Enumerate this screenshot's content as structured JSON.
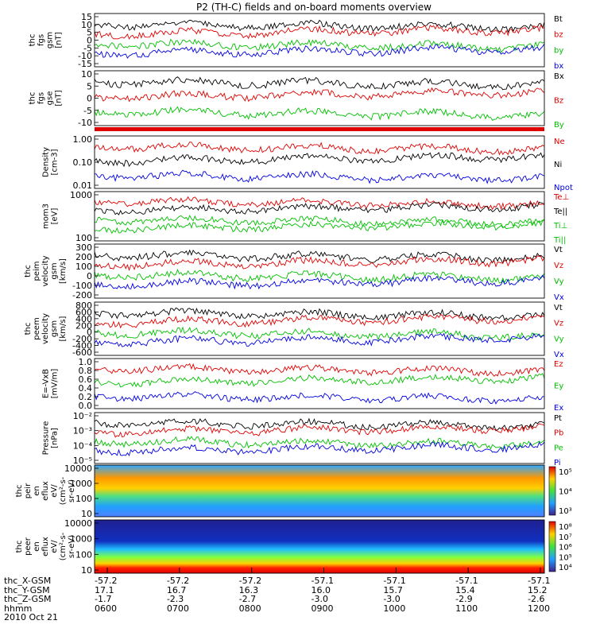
{
  "chart_data": {
    "title": "P2 (TH-C) fields and on-board moments overview",
    "type": "line",
    "x": {
      "tick_labels": [
        "0600",
        "0700",
        "0800",
        "0900",
        "1000",
        "1100",
        "1200"
      ],
      "ephemeris": [
        {
          "label": "thc_X-GSM",
          "values": [
            "-57.2",
            "-57.2",
            "-57.2",
            "-57.1",
            "-57.1",
            "-57.1",
            "-57.1"
          ]
        },
        {
          "label": "thc_Y-GSM",
          "values": [
            "17.1",
            "16.7",
            "16.3",
            "16.0",
            "15.7",
            "15.4",
            "15.2"
          ]
        },
        {
          "label": "thc_Z-GSM",
          "values": [
            "-1.7",
            "-2.3",
            "-2.7",
            "-3.0",
            "-3.0",
            "-2.9",
            "-2.6"
          ]
        },
        {
          "label": "hhmm",
          "values": [
            "0600",
            "0700",
            "0800",
            "0900",
            "1000",
            "1100",
            "1200"
          ]
        }
      ],
      "date": "2010 Oct 21"
    },
    "panels": [
      {
        "id": "fgs-gsm",
        "ylabel": [
          "thc",
          "fgs",
          "gsm",
          "[nT]"
        ],
        "yticks": [
          "15",
          "10",
          "5",
          "0",
          "-5",
          "-10",
          "-15"
        ],
        "legend": [
          {
            "name": "Bt",
            "color": "#000000"
          },
          {
            "name": "bz",
            "color": "#e00000"
          },
          {
            "name": "by",
            "color": "#00c000"
          },
          {
            "name": "bx",
            "color": "#0000e0"
          }
        ]
      },
      {
        "id": "fgs-gse",
        "ylabel": [
          "thc",
          "fgs",
          "gse",
          "[nT]"
        ],
        "yticks": [
          "10",
          "5",
          "0",
          "-5",
          "-10"
        ],
        "legend": [
          {
            "name": "Bx",
            "color": "#000000"
          },
          {
            "name": "Bz",
            "color": "#e00000"
          },
          {
            "name": "By",
            "color": "#00c000"
          }
        ]
      },
      {
        "id": "density",
        "ylabel": [
          "Density",
          "[cm-3]"
        ],
        "yticks": [
          "1.00",
          "0.10",
          "0.01"
        ],
        "legend": [
          {
            "name": "Ne",
            "color": "#e00000"
          },
          {
            "name": "Ni",
            "color": "#000000"
          },
          {
            "name": "Npot",
            "color": "#0000e0"
          }
        ]
      },
      {
        "id": "temperature",
        "ylabel": [
          "mom3",
          "[eV]"
        ],
        "yticks": [
          "1000",
          "100"
        ],
        "legend": [
          {
            "name": "Te⊥",
            "color": "#e00000"
          },
          {
            "name": "Te||",
            "color": "#000000"
          },
          {
            "name": "Ti⊥",
            "color": "#00c000"
          },
          {
            "name": "Ti||",
            "color": "#00c000"
          }
        ]
      },
      {
        "id": "peim-velocity",
        "ylabel": [
          "thc",
          "peim",
          "velocity",
          "gsm",
          "[km/s]"
        ],
        "yticks": [
          "300",
          "200",
          "100",
          "0",
          "-100",
          "-200"
        ],
        "legend": [
          {
            "name": "Vt",
            "color": "#000000"
          },
          {
            "name": "Vz",
            "color": "#e00000"
          },
          {
            "name": "Vy",
            "color": "#00c000"
          },
          {
            "name": "Vx",
            "color": "#0000e0"
          }
        ]
      },
      {
        "id": "peem-velocity",
        "ylabel": [
          "thc",
          "peem",
          "velocity",
          "gsm",
          "[km/s]"
        ],
        "yticks": [
          "800",
          "600",
          "400",
          "200",
          "0",
          "-200",
          "-400",
          "-600"
        ],
        "legend": [
          {
            "name": "Vt",
            "color": "#000000"
          },
          {
            "name": "Vz",
            "color": "#e00000"
          },
          {
            "name": "Vy",
            "color": "#00c000"
          },
          {
            "name": "Vx",
            "color": "#0000e0"
          }
        ]
      },
      {
        "id": "efield",
        "ylabel": [
          "E=-VxB",
          "[mV/m]"
        ],
        "yticks": [
          "1.0",
          "0.8",
          "0.6",
          "0.4",
          "0.2",
          "0.0"
        ],
        "legend": [
          {
            "name": "Ez",
            "color": "#e00000"
          },
          {
            "name": "Ey",
            "color": "#00c000"
          },
          {
            "name": "Ex",
            "color": "#0000e0"
          }
        ]
      },
      {
        "id": "pressure",
        "ylabel": [
          "Pressure",
          "[nPa]"
        ],
        "yticks": [
          "10⁻²",
          "10⁻³",
          "10⁻⁴",
          "10⁻⁵"
        ],
        "legend": [
          {
            "name": "Pt",
            "color": "#000000"
          },
          {
            "name": "Pb",
            "color": "#e00000"
          },
          {
            "name": "Pe",
            "color": "#00c000"
          },
          {
            "name": "Pi",
            "color": "#0000e0"
          }
        ]
      },
      {
        "id": "ion-spectrogram",
        "ylabel": [
          "thc",
          "peir",
          "en",
          "eflux",
          "eV/",
          "(cm²-s-",
          "sr-eV)"
        ],
        "yticks": [
          "10000",
          "1000",
          "100",
          "10"
        ],
        "colorbar": [
          "10⁵",
          "10⁴",
          "10³"
        ]
      },
      {
        "id": "electron-spectrogram",
        "ylabel": [
          "thc",
          "peer",
          "en",
          "eflux",
          "eV/",
          "(cm²-s-",
          "sr-eV)"
        ],
        "yticks": [
          "10000",
          "1000",
          "100",
          "10"
        ],
        "colorbar": [
          "10⁸",
          "10⁷",
          "10⁶",
          "10⁵",
          "10⁴"
        ]
      }
    ]
  }
}
